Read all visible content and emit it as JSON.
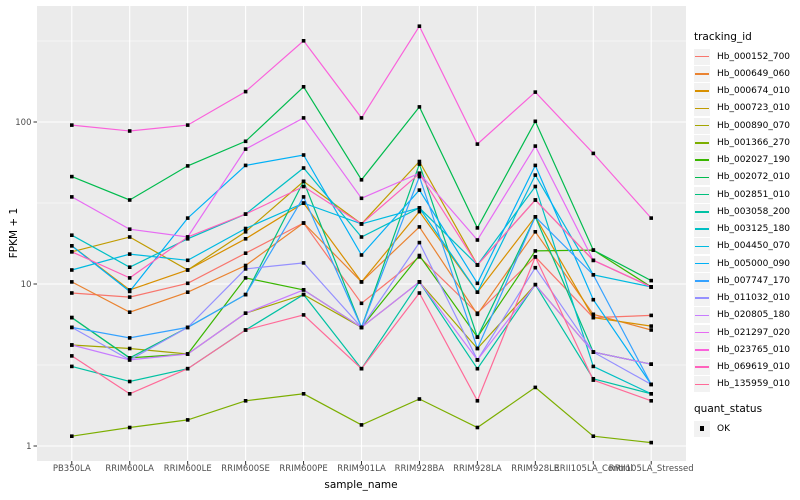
{
  "figure": {
    "background": "#FFFFFF"
  },
  "chart_data": {
    "type": "line",
    "title": "",
    "xlabel": "sample_name",
    "ylabel": "FPKM + 1",
    "y_scale": "log10",
    "ylim": [
      0.85,
      520
    ],
    "y_ticks": [
      1,
      10,
      100
    ],
    "y_tick_labels": [
      "1",
      "10",
      "100"
    ],
    "y_minor_ticks": [
      3.162,
      31.62,
      316.2
    ],
    "grid": true,
    "panel_bg": "#EBEBEB",
    "grid_color": "#FFFFFF",
    "tick_label_color": "#4D4D4D",
    "point_color": "#000000",
    "point_shape": "square",
    "legend_position": "right",
    "categories": [
      "PB350LA",
      "RRIM600LA",
      "RRIM600LE",
      "RRIM600SE",
      "RRIM600PE",
      "RRIM901LA",
      "RRIM928BA",
      "RRIM928LA",
      "RRIM928LE",
      "RRII105LA_Control",
      "RRII105LA_Stressed"
    ],
    "series": [
      {
        "name": "Hb_000152_700",
        "color": "#F8766D",
        "values": [
          8.8,
          8.3,
          10.1,
          15.5,
          23.8,
          7.6,
          14.7,
          6.6,
          14.7,
          6.2,
          6.4
        ]
      },
      {
        "name": "Hb_000649_060",
        "color": "#EA8331",
        "values": [
          10.3,
          6.7,
          8.9,
          13.0,
          23.8,
          10.3,
          22.5,
          6.5,
          21.0,
          6.5,
          5.2
        ]
      },
      {
        "name": "Hb_000674_010",
        "color": "#D89000",
        "values": [
          17.2,
          9.2,
          12.2,
          19.0,
          31.6,
          10.3,
          28.0,
          8.9,
          26.0,
          6.2,
          5.5
        ]
      },
      {
        "name": "Hb_000723_010",
        "color": "#C09B00",
        "values": [
          15.8,
          19.5,
          12.2,
          21.0,
          43.0,
          23.5,
          57.0,
          13.1,
          33.0,
          14.0,
          9.6
        ]
      },
      {
        "name": "Hb_000890_070",
        "color": "#A3A500",
        "values": [
          4.2,
          4.0,
          3.7,
          6.6,
          8.6,
          5.4,
          10.3,
          4.0,
          9.9,
          3.8,
          3.2
        ]
      },
      {
        "name": "Hb_001366_270",
        "color": "#7CAE00",
        "values": [
          1.15,
          1.3,
          1.45,
          1.9,
          2.1,
          1.35,
          1.95,
          1.3,
          2.3,
          1.15,
          1.05
        ]
      },
      {
        "name": "Hb_002027_190",
        "color": "#39B600",
        "values": [
          6.2,
          3.5,
          3.7,
          10.9,
          9.2,
          5.4,
          15.0,
          4.7,
          16.0,
          16.2,
          9.6
        ]
      },
      {
        "name": "Hb_002072_010",
        "color": "#00BB4E",
        "values": [
          46.0,
          33.0,
          53.6,
          76.0,
          165.0,
          44.0,
          124.0,
          22.2,
          101.0,
          16.2,
          10.5
        ]
      },
      {
        "name": "Hb_002851_010",
        "color": "#00BF7D",
        "values": [
          6.2,
          3.5,
          5.4,
          8.6,
          43.0,
          5.4,
          55.0,
          4.7,
          26.0,
          3.8,
          3.2
        ]
      },
      {
        "name": "Hb_003058_200",
        "color": "#00C1A3",
        "values": [
          3.1,
          2.5,
          3.0,
          5.2,
          8.6,
          3.0,
          10.3,
          3.0,
          9.9,
          2.6,
          2.1
        ]
      },
      {
        "name": "Hb_003125_180",
        "color": "#00BFC4",
        "values": [
          20.0,
          12.7,
          19.0,
          27.0,
          52.0,
          19.5,
          29.5,
          13.1,
          40.0,
          3.1,
          2.1
        ]
      },
      {
        "name": "Hb_004450_070",
        "color": "#00BAE0",
        "values": [
          12.2,
          15.3,
          14.0,
          22.0,
          31.6,
          23.5,
          29.5,
          8.9,
          47.0,
          11.4,
          9.6
        ]
      },
      {
        "name": "Hb_005000_090",
        "color": "#00B0F6",
        "values": [
          17.2,
          9.0,
          25.5,
          54.0,
          62.6,
          15.1,
          38.0,
          10.1,
          54.0,
          8.0,
          2.4
        ]
      },
      {
        "name": "Hb_007747_170",
        "color": "#35A2FF",
        "values": [
          5.4,
          4.65,
          5.4,
          8.6,
          34.5,
          5.4,
          46.0,
          4.0,
          26.0,
          11.4,
          2.4
        ]
      },
      {
        "name": "Hb_011032_010",
        "color": "#9590FF",
        "values": [
          5.4,
          3.4,
          5.4,
          12.4,
          13.5,
          5.4,
          18.0,
          3.4,
          12.6,
          3.8,
          2.4
        ]
      },
      {
        "name": "Hb_020805_180",
        "color": "#C77CFF",
        "values": [
          4.2,
          3.4,
          3.7,
          6.6,
          9.2,
          5.4,
          10.3,
          3.4,
          9.9,
          3.8,
          3.2
        ]
      },
      {
        "name": "Hb_021297_020",
        "color": "#E76BF3",
        "values": [
          34.5,
          21.8,
          19.5,
          68.0,
          106.0,
          33.8,
          48.3,
          18.7,
          71.0,
          14.0,
          9.6
        ]
      },
      {
        "name": "Hb_023765_010",
        "color": "#FA62DB",
        "values": [
          95.7,
          88.0,
          95.7,
          154.0,
          317.0,
          106.0,
          390.0,
          73.0,
          153.0,
          64.0,
          25.5
        ]
      },
      {
        "name": "Hb_069619_010",
        "color": "#FF62BC",
        "values": [
          15.8,
          10.9,
          19.5,
          27.0,
          40.0,
          23.5,
          48.0,
          13.1,
          33.0,
          14.0,
          9.6
        ]
      },
      {
        "name": "Hb_135959_010",
        "color": "#FF6A98",
        "values": [
          3.6,
          2.1,
          3.0,
          5.2,
          6.45,
          3.0,
          8.8,
          1.9,
          14.7,
          2.55,
          1.9
        ]
      }
    ],
    "legend": {
      "title": "tracking_id",
      "quant_legend": {
        "title": "quant_status",
        "items": [
          {
            "label": "OK",
            "marker": "black-square"
          }
        ]
      }
    }
  }
}
